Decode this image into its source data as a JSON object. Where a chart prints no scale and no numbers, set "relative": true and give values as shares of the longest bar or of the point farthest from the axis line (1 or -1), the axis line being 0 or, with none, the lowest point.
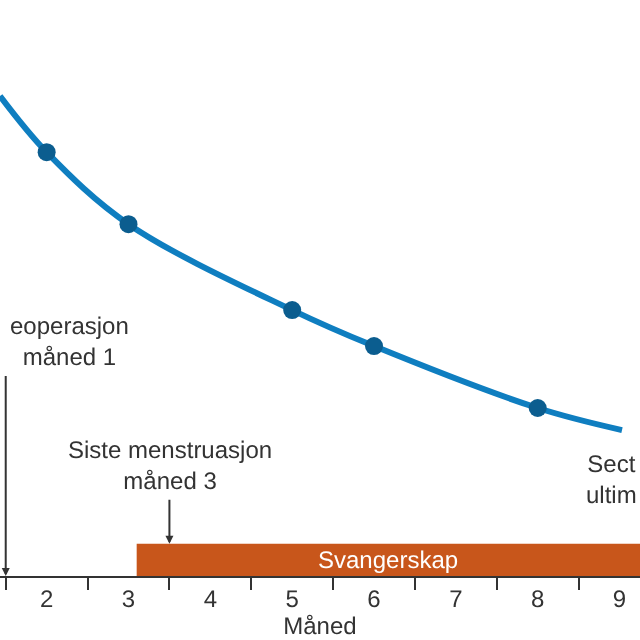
{
  "chart_data": {
    "type": "line",
    "relative": true,
    "xlabel": "Måned",
    "xlim": [
      1.43,
      9.25
    ],
    "xticks": [
      {
        "value": 1.5,
        "label": null
      },
      2,
      {
        "value": 2.5,
        "label": null
      },
      3,
      {
        "value": 3.5,
        "label": null
      },
      4,
      {
        "value": 4.5,
        "label": null
      },
      5,
      {
        "value": 5.5,
        "label": null
      },
      6,
      {
        "value": 6.5,
        "label": null
      },
      7,
      {
        "value": 7.5,
        "label": null
      },
      8,
      {
        "value": 8.5,
        "label": null
      },
      9
    ],
    "series": [
      {
        "color": "#0f7ec0",
        "marker": "none",
        "x": [
          1.43,
          2,
          3,
          5,
          6,
          8,
          9.03
        ],
        "values": [
          1,
          0.883,
          0.733,
          0.554,
          0.479,
          0.35,
          0.304
        ]
      },
      {
        "type": "scatter",
        "color": "#0b5d8f",
        "marker": "circle",
        "x": [
          2,
          3,
          5,
          6,
          8
        ],
        "values": [
          0.883,
          0.733,
          0.554,
          0.479,
          0.35
        ]
      }
    ],
    "bands": [
      {
        "axis": "x",
        "from": 3.1,
        "to": 9.25,
        "label": "Svangerskap",
        "color": "#c8561b"
      }
    ],
    "annotations": [
      {
        "text": "Siste menstruasjon\nmåned 3",
        "x": 3.5,
        "y": 0.067
      },
      "Sect\nultim"
    ],
    "ref_lines": [
      {
        "axis": "x",
        "value": 1.5,
        "label": "eoperasjon\nmåned 1"
      }
    ],
    "grid": false
  }
}
